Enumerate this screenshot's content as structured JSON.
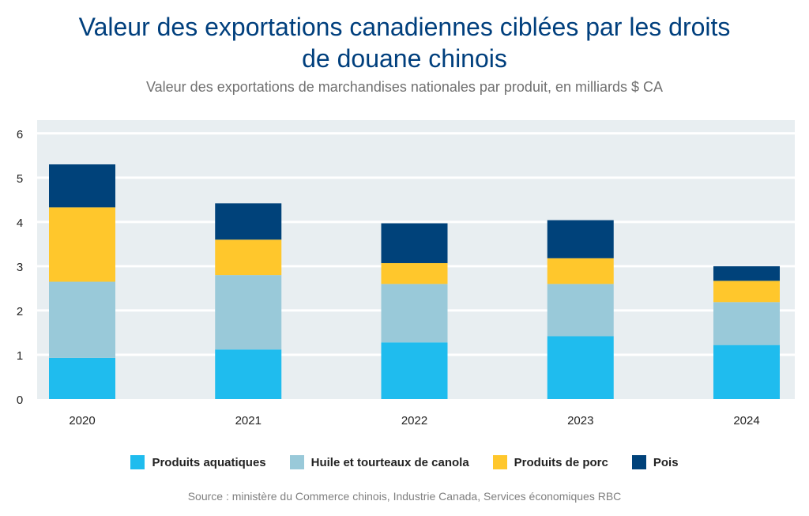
{
  "chart_data": {
    "type": "bar",
    "stacked": true,
    "title": "Valeur des exportations canadiennes ciblées par les droits de douane chinois",
    "subtitle": "Valeur des exportations de marchandises nationales par produit, en milliards $ CA",
    "categories": [
      "2020",
      "2021",
      "2022",
      "2023",
      "2024"
    ],
    "series": [
      {
        "name": "Produits aquatiques",
        "color": "#1fbcee",
        "values": [
          0.93,
          1.12,
          1.28,
          1.42,
          1.22
        ]
      },
      {
        "name": "Huile et tourteaux de canola",
        "color": "#99c9d9",
        "values": [
          1.72,
          1.68,
          1.32,
          1.18,
          0.97
        ]
      },
      {
        "name": "Produits de porc",
        "color": "#ffc72c",
        "values": [
          1.68,
          0.8,
          0.47,
          0.58,
          0.48
        ]
      },
      {
        "name": "Pois",
        "color": "#00427a",
        "values": [
          0.97,
          0.82,
          0.9,
          0.86,
          0.33
        ]
      }
    ],
    "yticks": [
      "0",
      "1",
      "2",
      "3",
      "4",
      "5",
      "6"
    ],
    "ylim": [
      0,
      6.3
    ],
    "grid": true,
    "legend_position": "bottom",
    "source": "Source : ministère du Commerce chinois, Industrie Canada, Services économiques RBC"
  }
}
